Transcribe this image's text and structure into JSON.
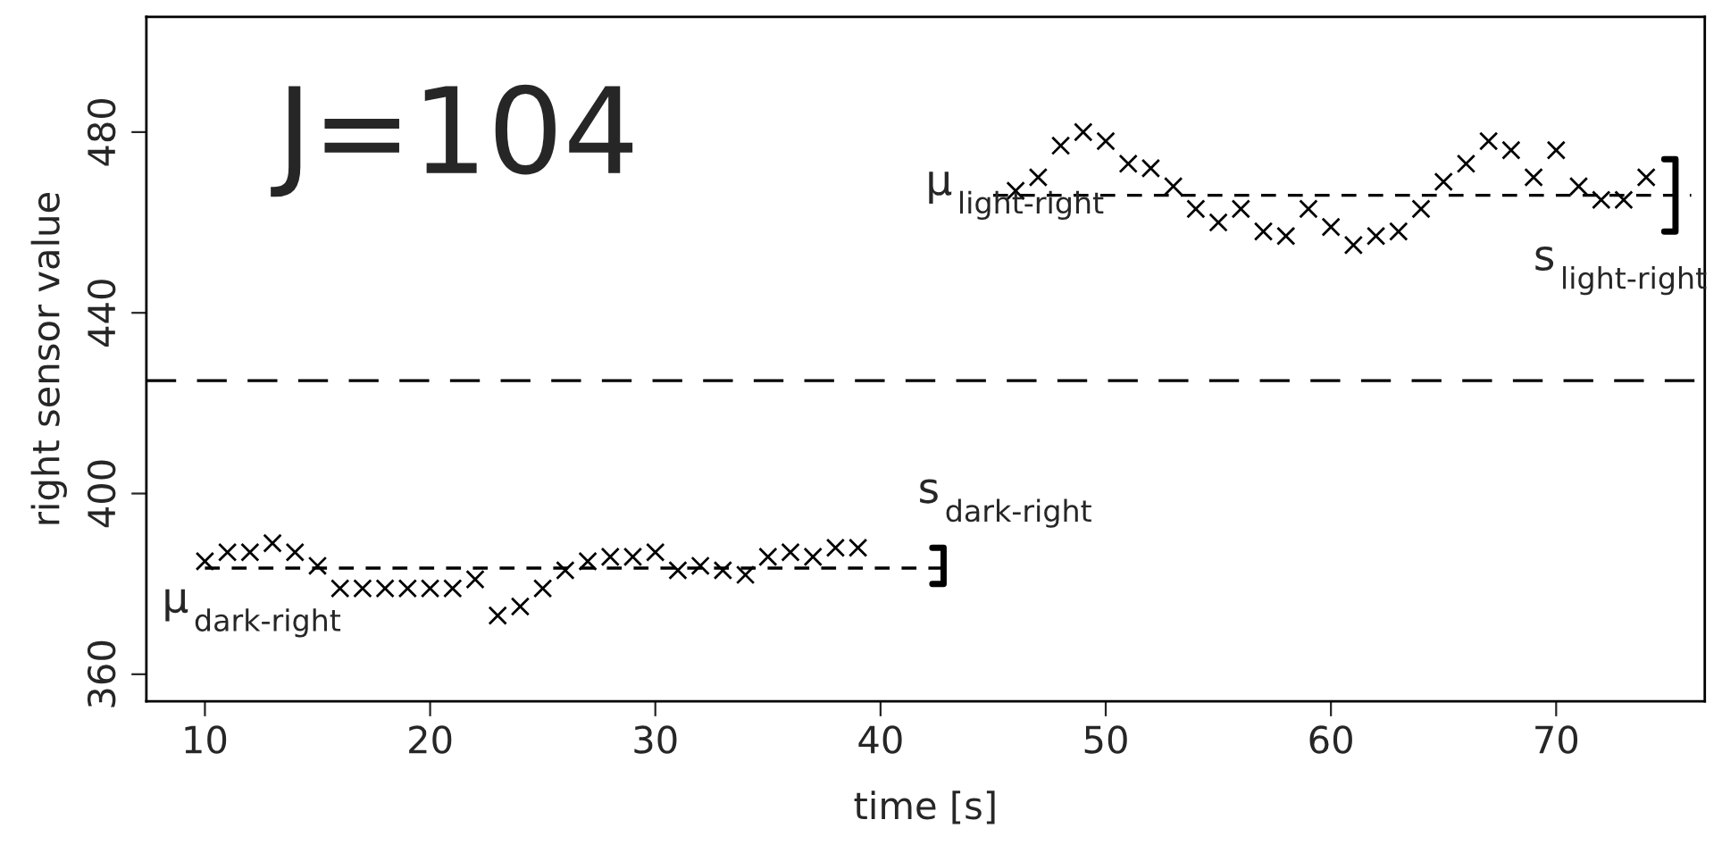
{
  "chart_data": {
    "type": "scatter",
    "xlabel": "time [s]",
    "ylabel": "right sensor value",
    "xlim": [
      7.4,
      76.6
    ],
    "ylim": [
      354,
      505.5
    ],
    "xticks": [
      10,
      20,
      30,
      40,
      50,
      60,
      70
    ],
    "yticks": [
      360,
      400,
      440,
      480
    ],
    "grid": false,
    "marker": "cross",
    "series": [
      {
        "color": "#000000",
        "x": [
          10,
          11,
          12,
          13,
          14,
          15,
          16,
          17,
          18,
          19,
          20,
          21,
          22,
          23,
          24,
          25,
          26,
          27,
          28,
          29,
          30,
          31,
          32,
          33,
          34,
          35,
          36,
          37,
          38,
          39
        ],
        "values": [
          385,
          387,
          387,
          389,
          387,
          384,
          379,
          379,
          379,
          379,
          379,
          379,
          381,
          373,
          375,
          379,
          383,
          385,
          386,
          386,
          387,
          383,
          384,
          383,
          382,
          386,
          387,
          386,
          388,
          388
        ]
      },
      {
        "color": "#000000",
        "x": [
          46,
          47,
          48,
          49,
          50,
          51,
          52,
          53,
          54,
          55,
          56,
          57,
          58,
          59,
          60,
          61,
          62,
          63,
          64,
          65,
          66,
          67,
          68,
          69,
          70,
          71,
          72,
          73,
          74
        ],
        "values": [
          467,
          470,
          477,
          480,
          478,
          473,
          472,
          468,
          463,
          460,
          463,
          458,
          457,
          463,
          459,
          455,
          457,
          458,
          463,
          469,
          473,
          478,
          476,
          470,
          476,
          468,
          465,
          465,
          470
        ]
      },
      {
        "type": "line",
        "marker": "none",
        "color": "#000000",
        "line_style": "dashed",
        "x": [
          10,
          43
        ],
        "values": [
          383.5,
          383.5
        ]
      },
      {
        "type": "line",
        "marker": "none",
        "color": "#000000",
        "line_style": "dashed",
        "x": [
          45,
          76
        ],
        "values": [
          466,
          466
        ]
      },
      {
        "type": "line",
        "marker": "none",
        "color": "#000000",
        "line_style": "solid",
        "x": [
          42.3,
          42.8,
          42.8,
          42.3
        ],
        "values": [
          380,
          380,
          388,
          388
        ]
      },
      {
        "type": "line",
        "marker": "none",
        "color": "#000000",
        "line_style": "solid",
        "x": [
          74.8,
          75.3,
          75.3,
          74.8
        ],
        "values": [
          458,
          458,
          474,
          474
        ]
      }
    ],
    "ref_lines": [
      {
        "axis": "y",
        "value": 425,
        "color": "#000000",
        "line_style": "dashed"
      }
    ],
    "annotations": [
      "J=104",
      "μ$_{dark-right}$",
      "s$_{dark-right}$",
      "μ$_{light-right}$",
      "s$_{light-right}$"
    ]
  }
}
